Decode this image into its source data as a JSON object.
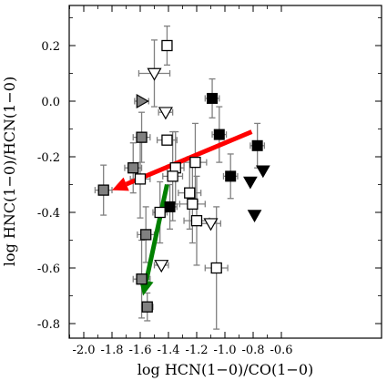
{
  "chart_data": {
    "type": "scatter",
    "title": "",
    "xlabel": "log HCN(1−0)/CO(1−0)",
    "ylabel": "log HNC(1−0)/HCN(1−0)",
    "xlim": [
      -2.1,
      -0.55
    ],
    "ylim": [
      -0.85,
      0.33
    ],
    "xticks": [
      -2.0,
      -1.8,
      -1.6,
      -1.4,
      -1.2,
      -1.0,
      -0.8,
      -0.6
    ],
    "xtick_labels": [
      "-2.0",
      "-1.8",
      "-1.6",
      "-1.4",
      "-1.2",
      "-1.0",
      "-0.8",
      "-0.6"
    ],
    "yticks": [
      0.2,
      0.0,
      -0.2,
      -0.4,
      -0.6,
      -0.8
    ],
    "ytick_labels": [
      "0.2",
      "0.0",
      "-0.2",
      "-0.4",
      "-0.6",
      "-0.8"
    ],
    "grid": false,
    "legend": null,
    "colors": {
      "black": "#000000",
      "gray": "#808080",
      "open": "#ffffff",
      "errorbar": "#808080",
      "red_arrow": "#ff0000",
      "green_arrow": "#008000"
    },
    "series": [
      {
        "marker": "square-filled-black",
        "points": [
          {
            "x": -1.09,
            "y": 0.01,
            "xerr": 0.05,
            "yerr": 0.07
          },
          {
            "x": -1.04,
            "y": -0.12,
            "xerr": 0.05,
            "yerr": 0.1
          },
          {
            "x": -0.77,
            "y": -0.16,
            "xerr": 0.05,
            "yerr": 0.08
          },
          {
            "x": -0.96,
            "y": -0.27,
            "xerr": 0.05,
            "yerr": 0.08
          },
          {
            "x": -1.39,
            "y": -0.38,
            "xerr": 0.05,
            "yerr": 0.08
          }
        ]
      },
      {
        "marker": "square-filled-gray",
        "points": [
          {
            "x": -1.86,
            "y": -0.32,
            "xerr": 0.06,
            "yerr": 0.09
          },
          {
            "x": -1.65,
            "y": -0.24,
            "xerr": 0.06,
            "yerr": 0.09
          },
          {
            "x": -1.59,
            "y": -0.13,
            "xerr": 0.06,
            "yerr": 0.09
          },
          {
            "x": -1.56,
            "y": -0.48,
            "xerr": 0.06,
            "yerr": 0.1
          },
          {
            "x": -1.59,
            "y": -0.64,
            "xerr": 0.06,
            "yerr": 0.14
          },
          {
            "x": -1.55,
            "y": -0.74,
            "xerr": 0.04,
            "yerr": 0.05
          }
        ]
      },
      {
        "marker": "square-open",
        "points": [
          {
            "x": -1.41,
            "y": 0.2,
            "xerr": 0.0,
            "yerr": 0.07
          },
          {
            "x": -1.41,
            "y": -0.14,
            "xerr": 0.07,
            "yerr": 0.0
          },
          {
            "x": -1.35,
            "y": -0.24,
            "xerr": 0.06,
            "yerr": 0.13
          },
          {
            "x": -1.37,
            "y": -0.27,
            "xerr": 0.07,
            "yerr": 0.16
          },
          {
            "x": -1.21,
            "y": -0.22,
            "xerr": 0.08,
            "yerr": 0.14
          },
          {
            "x": -1.25,
            "y": -0.33,
            "xerr": 0.08,
            "yerr": 0.13
          },
          {
            "x": -1.23,
            "y": -0.37,
            "xerr": 0.09,
            "yerr": 0.14
          },
          {
            "x": -1.2,
            "y": -0.43,
            "xerr": 0.09,
            "yerr": 0.16
          },
          {
            "x": -1.46,
            "y": -0.4,
            "xerr": 0.05,
            "yerr": 0.11
          },
          {
            "x": -1.06,
            "y": -0.6,
            "xerr": 0.08,
            "yerr": 0.22
          },
          {
            "x": -1.6,
            "y": -0.28,
            "xerr": 0.07,
            "yerr": 0.14
          }
        ]
      },
      {
        "marker": "triangle-down-open",
        "points": [
          {
            "x": -1.5,
            "y": 0.1,
            "xerr": 0.11,
            "yerr": 0.12
          },
          {
            "x": -1.42,
            "y": -0.04,
            "xerr": 0.05,
            "yerr": 0.0
          },
          {
            "x": -1.1,
            "y": -0.44,
            "xerr": 0.07,
            "yerr": 0.0
          },
          {
            "x": -1.45,
            "y": -0.59,
            "xerr": 0.05,
            "yerr": 0.0
          }
        ]
      },
      {
        "marker": "triangle-down-filled",
        "points": [
          {
            "x": -0.82,
            "y": -0.29
          },
          {
            "x": -0.73,
            "y": -0.25
          },
          {
            "x": -0.79,
            "y": -0.41
          }
        ]
      },
      {
        "marker": "triangle-right-gray",
        "points": [
          {
            "x": -1.59,
            "y": 0.0,
            "xerr": 0.05,
            "yerr": 0.0
          }
        ]
      }
    ],
    "arrows": [
      {
        "color": "red",
        "from": [
          -0.81,
          -0.11
        ],
        "to": [
          -1.8,
          -0.32
        ]
      },
      {
        "color": "green",
        "from": [
          -1.41,
          -0.3
        ],
        "to": [
          -1.58,
          -0.7
        ]
      }
    ]
  }
}
